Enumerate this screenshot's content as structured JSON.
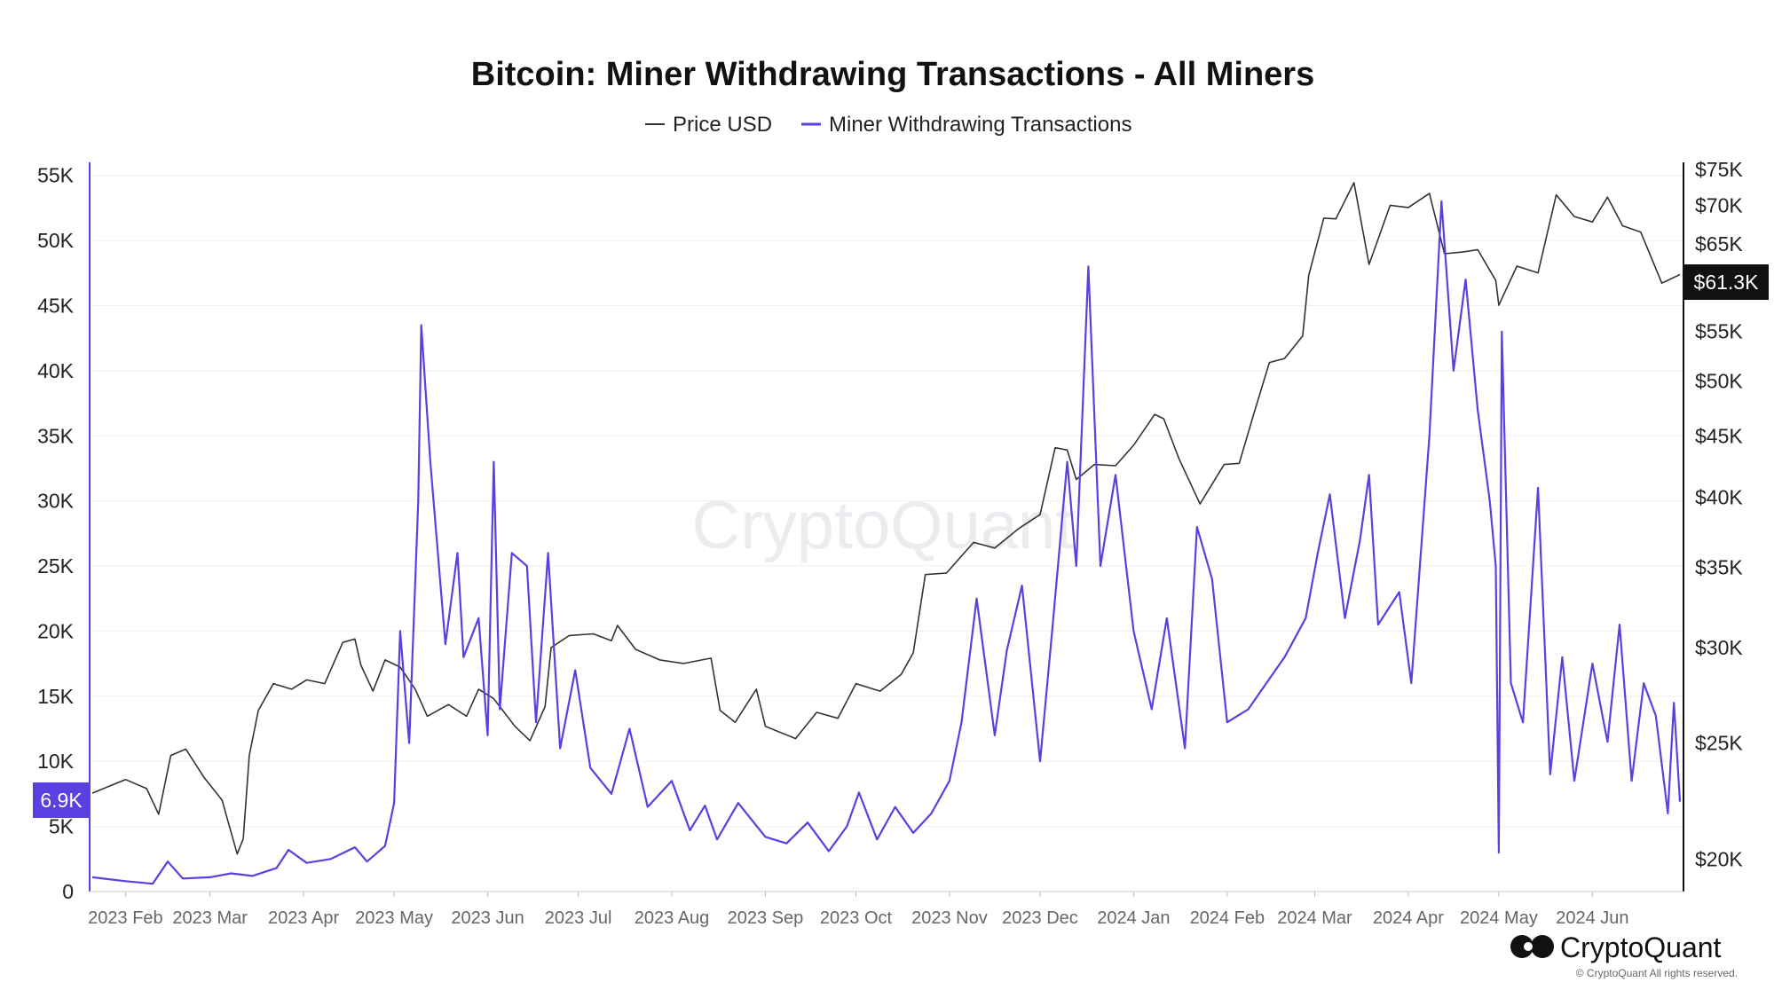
{
  "chart_data": {
    "type": "line",
    "title": "Bitcoin: Miner Withdrawing Transactions - All Miners",
    "legend": {
      "placement": "top-center",
      "items": [
        {
          "label": "Price USD",
          "color": "#333333"
        },
        {
          "label": "Miner Withdrawing Transactions",
          "color": "#5b3fe0"
        }
      ]
    },
    "grid": true,
    "x_tick_labels": [
      "2023 Feb",
      "2023 Mar",
      "2023 Apr",
      "2023 May",
      "2023 Jun",
      "2023 Jul",
      "2023 Aug",
      "2023 Sep",
      "2023 Oct",
      "2023 Nov",
      "2023 Dec",
      "2024 Jan",
      "2024 Feb",
      "2024 Mar",
      "2024 Apr",
      "2024 May",
      "2024 Jun"
    ],
    "x_tick_dates": [
      "2023-02-01",
      "2023-03-01",
      "2023-04-01",
      "2023-05-01",
      "2023-06-01",
      "2023-07-01",
      "2023-08-01",
      "2023-09-01",
      "2023-10-01",
      "2023-11-01",
      "2023-12-01",
      "2024-01-01",
      "2024-02-01",
      "2024-03-01",
      "2024-04-01",
      "2024-05-01",
      "2024-06-01"
    ],
    "x_range": [
      "2023-01-21",
      "2024-06-30"
    ],
    "left_axis": {
      "series": "Miner Withdrawing Transactions",
      "scale": "linear",
      "range": [
        0,
        56000
      ],
      "tick_labels": [
        "0",
        "5K",
        "10K",
        "15K",
        "20K",
        "25K",
        "30K",
        "35K",
        "40K",
        "45K",
        "50K",
        "55K"
      ],
      "tick_values": [
        0,
        5000,
        10000,
        15000,
        20000,
        25000,
        30000,
        35000,
        40000,
        45000,
        50000,
        55000
      ],
      "color": "#5b3fe0"
    },
    "right_axis": {
      "series": "Price USD",
      "scale": "log",
      "range": [
        18800,
        76000
      ],
      "tick_labels": [
        "$20K",
        "$25K",
        "$30K",
        "$35K",
        "$40K",
        "$45K",
        "$50K",
        "$55K",
        "$60K",
        "$65K",
        "$70K",
        "$75K"
      ],
      "tick_values": [
        20000,
        25000,
        30000,
        35000,
        40000,
        45000,
        50000,
        55000,
        60000,
        65000,
        70000,
        75000
      ],
      "color": "#111111"
    },
    "current_value_flags": {
      "left": "6.9K",
      "right": "$61.3K"
    },
    "series": [
      {
        "name": "Price USD",
        "axis": "right",
        "color": "#333333",
        "points": [
          [
            "2023-01-21",
            22700
          ],
          [
            "2023-02-01",
            23300
          ],
          [
            "2023-02-08",
            22900
          ],
          [
            "2023-02-12",
            21800
          ],
          [
            "2023-02-16",
            24400
          ],
          [
            "2023-02-21",
            24700
          ],
          [
            "2023-02-27",
            23400
          ],
          [
            "2023-03-05",
            22400
          ],
          [
            "2023-03-10",
            20200
          ],
          [
            "2023-03-12",
            20800
          ],
          [
            "2023-03-14",
            24400
          ],
          [
            "2023-03-17",
            26600
          ],
          [
            "2023-03-22",
            28000
          ],
          [
            "2023-03-28",
            27700
          ],
          [
            "2023-04-02",
            28200
          ],
          [
            "2023-04-08",
            28000
          ],
          [
            "2023-04-14",
            30300
          ],
          [
            "2023-04-18",
            30500
          ],
          [
            "2023-04-20",
            29000
          ],
          [
            "2023-04-24",
            27600
          ],
          [
            "2023-04-28",
            29300
          ],
          [
            "2023-05-03",
            28900
          ],
          [
            "2023-05-08",
            27700
          ],
          [
            "2023-05-12",
            26300
          ],
          [
            "2023-05-19",
            26900
          ],
          [
            "2023-05-25",
            26300
          ],
          [
            "2023-05-29",
            27700
          ],
          [
            "2023-06-03",
            27200
          ],
          [
            "2023-06-10",
            25800
          ],
          [
            "2023-06-15",
            25100
          ],
          [
            "2023-06-20",
            26800
          ],
          [
            "2023-06-22",
            30000
          ],
          [
            "2023-06-28",
            30700
          ],
          [
            "2023-07-06",
            30800
          ],
          [
            "2023-07-12",
            30400
          ],
          [
            "2023-07-14",
            31300
          ],
          [
            "2023-07-20",
            29900
          ],
          [
            "2023-07-28",
            29300
          ],
          [
            "2023-08-05",
            29100
          ],
          [
            "2023-08-14",
            29400
          ],
          [
            "2023-08-17",
            26600
          ],
          [
            "2023-08-22",
            26000
          ],
          [
            "2023-08-29",
            27700
          ],
          [
            "2023-09-01",
            25800
          ],
          [
            "2023-09-11",
            25200
          ],
          [
            "2023-09-18",
            26500
          ],
          [
            "2023-09-25",
            26200
          ],
          [
            "2023-10-01",
            28000
          ],
          [
            "2023-10-09",
            27600
          ],
          [
            "2023-10-16",
            28500
          ],
          [
            "2023-10-20",
            29700
          ],
          [
            "2023-10-24",
            34500
          ],
          [
            "2023-10-31",
            34600
          ],
          [
            "2023-11-09",
            36700
          ],
          [
            "2023-11-16",
            36300
          ],
          [
            "2023-11-24",
            37700
          ],
          [
            "2023-12-01",
            38700
          ],
          [
            "2023-12-06",
            44000
          ],
          [
            "2023-12-10",
            43800
          ],
          [
            "2023-12-13",
            41400
          ],
          [
            "2023-12-19",
            42600
          ],
          [
            "2023-12-26",
            42500
          ],
          [
            "2024-01-01",
            44200
          ],
          [
            "2024-01-08",
            46900
          ],
          [
            "2024-01-11",
            46500
          ],
          [
            "2024-01-16",
            43100
          ],
          [
            "2024-01-23",
            39500
          ],
          [
            "2024-01-31",
            42600
          ],
          [
            "2024-02-05",
            42700
          ],
          [
            "2024-02-10",
            47100
          ],
          [
            "2024-02-15",
            51800
          ],
          [
            "2024-02-20",
            52200
          ],
          [
            "2024-02-26",
            54500
          ],
          [
            "2024-02-28",
            61200
          ],
          [
            "2024-03-04",
            68300
          ],
          [
            "2024-03-08",
            68200
          ],
          [
            "2024-03-14",
            73100
          ],
          [
            "2024-03-19",
            62500
          ],
          [
            "2024-03-26",
            70000
          ],
          [
            "2024-04-01",
            69700
          ],
          [
            "2024-04-08",
            71600
          ],
          [
            "2024-04-13",
            63800
          ],
          [
            "2024-04-19",
            64000
          ],
          [
            "2024-04-24",
            64300
          ],
          [
            "2024-04-30",
            60600
          ],
          [
            "2024-05-01",
            57800
          ],
          [
            "2024-05-07",
            62300
          ],
          [
            "2024-05-14",
            61500
          ],
          [
            "2024-05-20",
            71400
          ],
          [
            "2024-05-26",
            68500
          ],
          [
            "2024-06-01",
            67800
          ],
          [
            "2024-06-06",
            71100
          ],
          [
            "2024-06-11",
            67300
          ],
          [
            "2024-06-17",
            66500
          ],
          [
            "2024-06-24",
            60300
          ],
          [
            "2024-06-30",
            61300
          ]
        ]
      },
      {
        "name": "Miner Withdrawing Transactions",
        "axis": "left",
        "color": "#5b3fe0",
        "points": [
          [
            "2023-01-21",
            1100
          ],
          [
            "2023-02-01",
            800
          ],
          [
            "2023-02-10",
            600
          ],
          [
            "2023-02-15",
            2300
          ],
          [
            "2023-02-20",
            1000
          ],
          [
            "2023-03-01",
            1100
          ],
          [
            "2023-03-08",
            1400
          ],
          [
            "2023-03-15",
            1200
          ],
          [
            "2023-03-23",
            1800
          ],
          [
            "2023-03-27",
            3200
          ],
          [
            "2023-04-02",
            2200
          ],
          [
            "2023-04-10",
            2500
          ],
          [
            "2023-04-18",
            3400
          ],
          [
            "2023-04-22",
            2300
          ],
          [
            "2023-04-28",
            3500
          ],
          [
            "2023-05-01",
            6800
          ],
          [
            "2023-05-03",
            20000
          ],
          [
            "2023-05-06",
            11400
          ],
          [
            "2023-05-09",
            30000
          ],
          [
            "2023-05-10",
            43500
          ],
          [
            "2023-05-13",
            33000
          ],
          [
            "2023-05-18",
            19000
          ],
          [
            "2023-05-22",
            26000
          ],
          [
            "2023-05-24",
            18000
          ],
          [
            "2023-05-29",
            21000
          ],
          [
            "2023-06-01",
            12000
          ],
          [
            "2023-06-03",
            33000
          ],
          [
            "2023-06-05",
            14000
          ],
          [
            "2023-06-09",
            26000
          ],
          [
            "2023-06-14",
            25000
          ],
          [
            "2023-06-17",
            13000
          ],
          [
            "2023-06-21",
            26000
          ],
          [
            "2023-06-25",
            11000
          ],
          [
            "2023-06-30",
            17000
          ],
          [
            "2023-07-05",
            9500
          ],
          [
            "2023-07-12",
            7500
          ],
          [
            "2023-07-18",
            12500
          ],
          [
            "2023-07-24",
            6500
          ],
          [
            "2023-08-01",
            8500
          ],
          [
            "2023-08-07",
            4700
          ],
          [
            "2023-08-12",
            6600
          ],
          [
            "2023-08-16",
            4000
          ],
          [
            "2023-08-23",
            6800
          ],
          [
            "2023-09-01",
            4200
          ],
          [
            "2023-09-08",
            3700
          ],
          [
            "2023-09-15",
            5300
          ],
          [
            "2023-09-22",
            3100
          ],
          [
            "2023-09-28",
            5000
          ],
          [
            "2023-10-02",
            7600
          ],
          [
            "2023-10-08",
            4000
          ],
          [
            "2023-10-14",
            6500
          ],
          [
            "2023-10-20",
            4500
          ],
          [
            "2023-10-26",
            6000
          ],
          [
            "2023-11-01",
            8500
          ],
          [
            "2023-11-05",
            13000
          ],
          [
            "2023-11-10",
            22500
          ],
          [
            "2023-11-16",
            12000
          ],
          [
            "2023-11-20",
            18500
          ],
          [
            "2023-11-25",
            23500
          ],
          [
            "2023-12-01",
            10000
          ],
          [
            "2023-12-05",
            20000
          ],
          [
            "2023-12-10",
            33000
          ],
          [
            "2023-12-13",
            25000
          ],
          [
            "2023-12-17",
            48000
          ],
          [
            "2023-12-21",
            25000
          ],
          [
            "2023-12-26",
            32000
          ],
          [
            "2024-01-01",
            20000
          ],
          [
            "2024-01-07",
            14000
          ],
          [
            "2024-01-12",
            21000
          ],
          [
            "2024-01-18",
            11000
          ],
          [
            "2024-01-22",
            28000
          ],
          [
            "2024-01-27",
            24000
          ],
          [
            "2024-02-01",
            13000
          ],
          [
            "2024-02-08",
            14000
          ],
          [
            "2024-02-14",
            16000
          ],
          [
            "2024-02-20",
            18000
          ],
          [
            "2024-02-27",
            21000
          ],
          [
            "2024-03-02",
            26000
          ],
          [
            "2024-03-06",
            30500
          ],
          [
            "2024-03-11",
            21000
          ],
          [
            "2024-03-16",
            27000
          ],
          [
            "2024-03-19",
            32000
          ],
          [
            "2024-03-22",
            20500
          ],
          [
            "2024-03-29",
            23000
          ],
          [
            "2024-04-02",
            16000
          ],
          [
            "2024-04-08",
            35000
          ],
          [
            "2024-04-12",
            53000
          ],
          [
            "2024-04-16",
            40000
          ],
          [
            "2024-04-20",
            47000
          ],
          [
            "2024-04-24",
            37000
          ],
          [
            "2024-04-28",
            30000
          ],
          [
            "2024-04-30",
            25000
          ],
          [
            "2024-05-01",
            3000
          ],
          [
            "2024-05-02",
            43000
          ],
          [
            "2024-05-05",
            16000
          ],
          [
            "2024-05-09",
            13000
          ],
          [
            "2024-05-14",
            31000
          ],
          [
            "2024-05-18",
            9000
          ],
          [
            "2024-05-22",
            18000
          ],
          [
            "2024-05-26",
            8500
          ],
          [
            "2024-06-01",
            17500
          ],
          [
            "2024-06-06",
            11500
          ],
          [
            "2024-06-10",
            20500
          ],
          [
            "2024-06-14",
            8500
          ],
          [
            "2024-06-18",
            16000
          ],
          [
            "2024-06-22",
            13500
          ],
          [
            "2024-06-26",
            6000
          ],
          [
            "2024-06-28",
            14500
          ],
          [
            "2024-06-30",
            6900
          ]
        ]
      }
    ]
  },
  "branding": {
    "watermark": "CryptoQuant",
    "logo_text": "CryptoQuant",
    "copyright": "© CryptoQuant All rights reserved."
  }
}
